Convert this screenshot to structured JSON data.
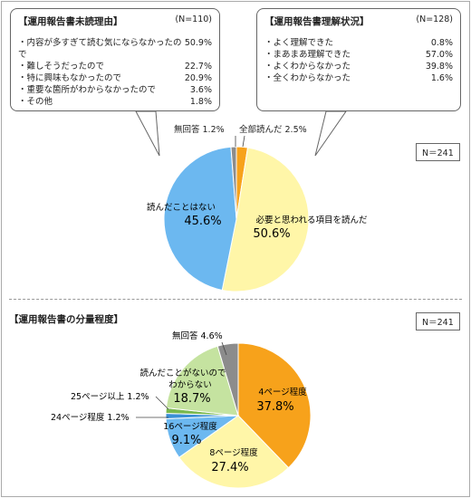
{
  "callout_left": {
    "title": "【運用報告書未読理由】",
    "n": "(N=110)",
    "rows": [
      {
        "label": "・内容が多すぎて読む気にならなかったので",
        "value": "50.9%"
      },
      {
        "label": "・難しそうだったので",
        "value": "22.7%"
      },
      {
        "label": "・特に興味もなかったので",
        "value": "20.9%"
      },
      {
        "label": "・重要な箇所がわからなかったので",
        "value": "3.6%"
      },
      {
        "label": "・その他",
        "value": "1.8%"
      }
    ]
  },
  "callout_right": {
    "title": "【運用報告書理解状況】",
    "n": "(N=128)",
    "rows": [
      {
        "label": "・よく理解できた",
        "value": "0.8%"
      },
      {
        "label": "・まあまあ理解できた",
        "value": "57.0%"
      },
      {
        "label": "・よくわからなかった",
        "value": "39.8%"
      },
      {
        "label": "・全くわからなかった",
        "value": "1.6%"
      }
    ]
  },
  "chart_data": [
    {
      "type": "pie",
      "title": "",
      "n_label": "N＝241",
      "slices": [
        {
          "label": "全部読んだ",
          "pct_text": "2.5%",
          "value": 2.5,
          "color": "#f7a21b"
        },
        {
          "label": "必要と思われる項目を読んだ",
          "pct_text": "50.6%",
          "value": 50.6,
          "color": "#fff6a8"
        },
        {
          "label": "読んだことはない",
          "pct_text": "45.6%",
          "value": 45.6,
          "color": "#6cb8f0"
        },
        {
          "label": "無回答",
          "pct_text": "1.2%",
          "value": 1.2,
          "color": "#8c8c8c"
        }
      ]
    },
    {
      "type": "pie",
      "title": "【運用報告書の分量程度】",
      "n_label": "N＝241",
      "slices": [
        {
          "label": "4ページ程度",
          "pct_text": "37.8%",
          "value": 37.8,
          "color": "#f7a21b"
        },
        {
          "label": "8ページ程度",
          "pct_text": "27.4%",
          "value": 27.4,
          "color": "#fff6a8"
        },
        {
          "label": "16ページ程度",
          "pct_text": "9.1%",
          "value": 9.1,
          "color": "#6cb8f0"
        },
        {
          "label": "24ページ程度",
          "pct_text": "1.2%",
          "value": 1.2,
          "color": "#3a8fd6"
        },
        {
          "label": "25ページ以上",
          "pct_text": "1.2%",
          "value": 1.2,
          "color": "#79b84e"
        },
        {
          "label": "読んだことがないのでわからない",
          "pct_text": "18.7%",
          "value": 18.7,
          "color": "#c5e3a0"
        },
        {
          "label": "無回答",
          "pct_text": "4.6%",
          "value": 4.6,
          "color": "#8c8c8c"
        }
      ]
    }
  ]
}
